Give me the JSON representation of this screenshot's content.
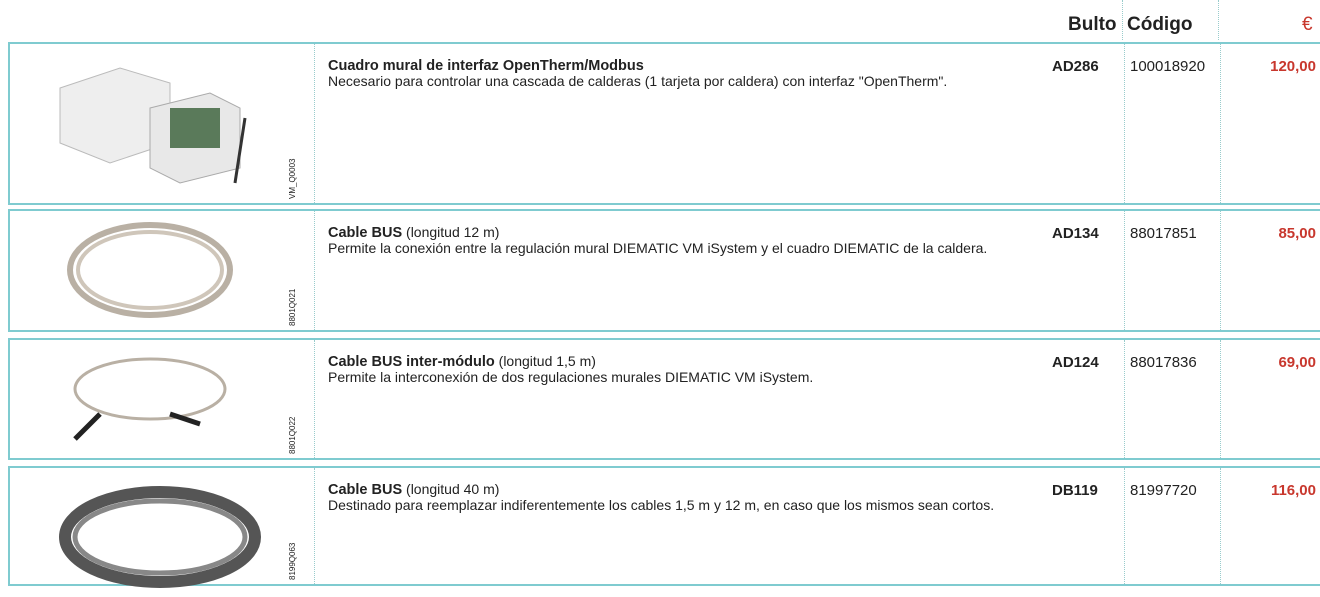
{
  "header": {
    "bulto": "Bulto",
    "codigo": "Código",
    "currency": "€"
  },
  "rows": [
    {
      "image_code": "VM_Q0003",
      "title": "Cuadro mural de interfaz OpenTherm/Modbus",
      "description": "Necesario para controlar una cascada de calderas (1 tarjeta por caldera) con interfaz \"OpenTherm\".",
      "bulto": "AD286",
      "codigo": "100018920",
      "price": "120,00"
    },
    {
      "image_code": "8801Q021",
      "title": "Cable BUS",
      "title_suffix": "(longitud 12 m)",
      "description": "Permite la conexión entre la regulación mural DIEMATIC VM iSystem y el cuadro DIEMATIC de la caldera.",
      "bulto": "AD134",
      "codigo": "88017851",
      "price": "85,00"
    },
    {
      "image_code": "8801Q022",
      "title": "Cable BUS inter-módulo",
      "title_suffix": "(longitud 1,5 m)",
      "description": "Permite la interconexión de dos regulaciones murales DIEMATIC VM iSystem.",
      "bulto": "AD124",
      "codigo": "88017836",
      "price": "69,00"
    },
    {
      "image_code": "8199Q063",
      "title": "Cable BUS",
      "title_suffix": "(longitud 40 m)",
      "description": "Destinado para reemplazar indiferentemente los cables 1,5 m y 12 m, en caso que los mismos sean cortos.",
      "bulto": "DB119",
      "codigo": "81997720",
      "price": "116,00"
    }
  ]
}
